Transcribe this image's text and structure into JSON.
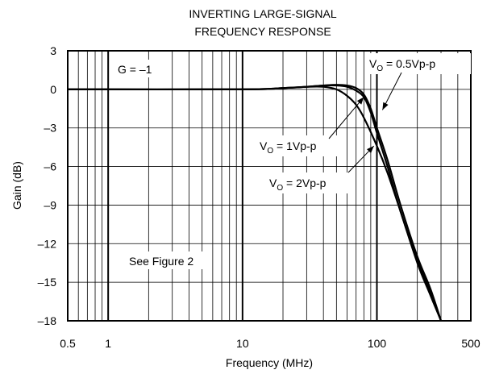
{
  "chart_data": {
    "type": "line",
    "title_lines": [
      "INVERTING LARGE-SIGNAL",
      "FREQUENCY RESPONSE"
    ],
    "xlabel": "Frequency (MHz)",
    "ylabel": "Gain (dB)",
    "x_scale": "log",
    "xlim": [
      0.5,
      500
    ],
    "ylim": [
      -18,
      3
    ],
    "grid": true,
    "x_ticks": [
      0.5,
      1,
      10,
      100,
      500
    ],
    "x_tick_labels": [
      "0.5",
      "1",
      "10",
      "100",
      "500"
    ],
    "y_ticks": [
      3,
      0,
      -3,
      -6,
      -9,
      -12,
      -15,
      -18
    ],
    "y_tick_labels": [
      "3",
      "0",
      "–3",
      "–6",
      "–9",
      "–12",
      "–15",
      "–18"
    ],
    "annotations": {
      "gain": "G = –1",
      "see_figure": "See Figure 2"
    },
    "series": [
      {
        "name_main": "V",
        "name_sub": "O",
        "name_rest": " = 0.5Vp-p",
        "x": [
          0.5,
          10,
          20,
          30,
          40,
          50,
          60,
          70,
          80,
          90,
          100,
          120,
          150,
          200,
          250,
          300
        ],
        "y": [
          0,
          0,
          0.1,
          0.2,
          0.3,
          0.35,
          0.3,
          0.1,
          -0.4,
          -1.5,
          -3,
          -5.5,
          -9,
          -13,
          -15.5,
          -18
        ]
      },
      {
        "name_main": "V",
        "name_sub": "O",
        "name_rest": " = 1Vp-p",
        "x": [
          0.5,
          10,
          20,
          30,
          40,
          50,
          60,
          70,
          80,
          90,
          100,
          120,
          150,
          200,
          250,
          300
        ],
        "y": [
          0,
          0,
          0.1,
          0.2,
          0.3,
          0.3,
          0.2,
          -0.1,
          -0.6,
          -1.8,
          -3.4,
          -6,
          -9.5,
          -13.3,
          -15.8,
          -18
        ]
      },
      {
        "name_main": "V",
        "name_sub": "O",
        "name_rest": " = 2Vp-p",
        "x": [
          0.5,
          10,
          20,
          30,
          40,
          50,
          60,
          70,
          80,
          100,
          120,
          150,
          200,
          250,
          300
        ],
        "y": [
          0,
          0,
          0.1,
          0.2,
          0.2,
          0,
          -0.5,
          -1.2,
          -2.2,
          -4.4,
          -6.5,
          -9.5,
          -13.5,
          -16,
          -18
        ]
      }
    ]
  }
}
